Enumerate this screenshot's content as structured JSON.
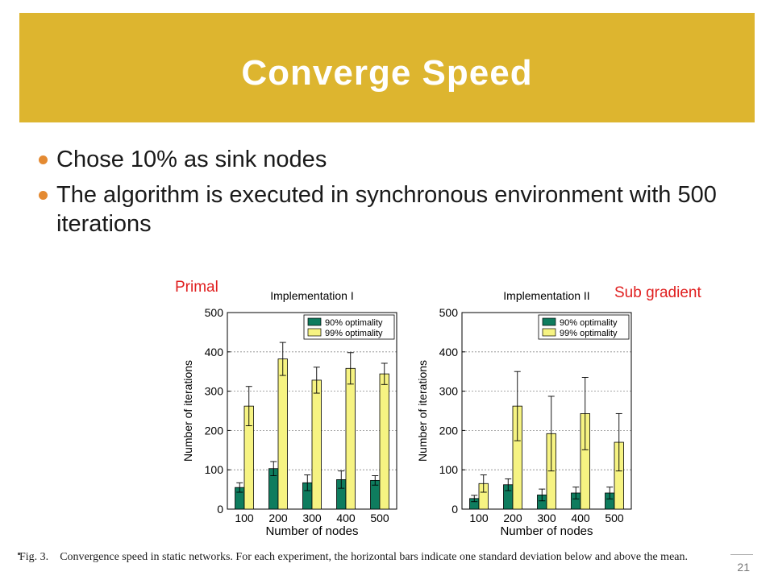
{
  "slide": {
    "title": "Converge Speed",
    "bullets": [
      "Chose 10% as sink nodes",
      "The algorithm is executed in synchronous environment with 500 iterations"
    ],
    "annotations": {
      "left": "Primal",
      "right": "Sub gradient"
    },
    "caption_prefix": "Fig. 3.",
    "caption_text": "Convergence speed in static networks. For each experiment, the horizontal bars indicate one standard deviation below and above the mean.",
    "page_number": "21"
  },
  "colors": {
    "title_bg": "#ddb52f",
    "bullet": "#e48a32",
    "annotation": "#e01f1f",
    "bar_90": "#0e7c5e",
    "bar_99": "#f6f382"
  },
  "chart_data": [
    {
      "type": "bar",
      "title": "Implementation I",
      "xlabel": "Number of nodes",
      "ylabel": "Number of iterations",
      "categories": [
        "100",
        "200",
        "300",
        "400",
        "500"
      ],
      "ylim": [
        0,
        500
      ],
      "yticks": [
        "0",
        "100",
        "200",
        "300",
        "400",
        "500"
      ],
      "grid": true,
      "legend_position": "top-right",
      "series": [
        {
          "name": "90% optimality",
          "values": [
            55,
            103,
            67,
            75,
            73
          ],
          "std": [
            12,
            18,
            20,
            22,
            12
          ]
        },
        {
          "name": "99% optimality",
          "values": [
            262,
            382,
            328,
            358,
            344
          ],
          "std": [
            50,
            42,
            33,
            40,
            27
          ]
        }
      ]
    },
    {
      "type": "bar",
      "title": "Implementation II",
      "xlabel": "Number of nodes",
      "ylabel": "Number of iterations",
      "categories": [
        "100",
        "200",
        "300",
        "400",
        "500"
      ],
      "ylim": [
        0,
        500
      ],
      "yticks": [
        "0",
        "100",
        "200",
        "300",
        "400",
        "500"
      ],
      "grid": true,
      "legend_position": "top-right",
      "series": [
        {
          "name": "90% optimality",
          "values": [
            27,
            62,
            36,
            41,
            41
          ],
          "std": [
            8,
            15,
            15,
            15,
            15
          ]
        },
        {
          "name": "99% optimality",
          "values": [
            65,
            262,
            192,
            243,
            170
          ],
          "std": [
            22,
            88,
            95,
            92,
            73
          ]
        }
      ]
    }
  ]
}
